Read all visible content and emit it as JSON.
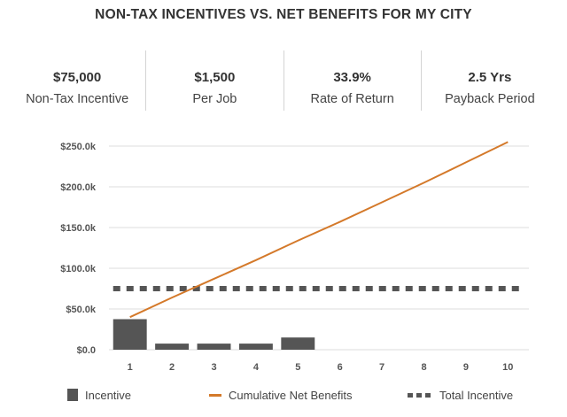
{
  "title": "NON-TAX INCENTIVES VS. NET BENEFITS FOR MY CITY",
  "stats": [
    {
      "value": "$75,000",
      "label": "Non-Tax Incentive"
    },
    {
      "value": "$1,500",
      "label": "Per Job"
    },
    {
      "value": "33.9%",
      "label": "Rate of Return"
    },
    {
      "value": "2.5 Yrs",
      "label": "Payback Period"
    }
  ],
  "legend": {
    "incentive": "Incentive",
    "net_benefits": "Cumulative Net Benefits",
    "total_incentive": "Total Incentive"
  },
  "colors": {
    "bars": "#555555",
    "line": "#d4792a",
    "dashed": "#555555",
    "grid": "#dddddd"
  },
  "chart_data": {
    "type": "bar",
    "title": "",
    "xlabel": "",
    "ylabel": "",
    "categories": [
      "1",
      "2",
      "3",
      "4",
      "5",
      "6",
      "7",
      "8",
      "9",
      "10"
    ],
    "ylim": [
      0,
      250000
    ],
    "y_ticks": [
      0,
      50000,
      100000,
      150000,
      200000,
      250000
    ],
    "y_tick_labels": [
      "$0.0",
      "$50.0k",
      "$100.0k",
      "$150.0k",
      "$200.0k",
      "$250.0k"
    ],
    "grid": true,
    "legend_position": "bottom",
    "series": [
      {
        "name": "Incentive",
        "type": "bar",
        "values": [
          37500,
          7500,
          7500,
          7500,
          15000,
          0,
          0,
          0,
          0,
          0
        ]
      },
      {
        "name": "Cumulative Net Benefits",
        "type": "line",
        "values": [
          40000,
          64000,
          87000,
          110000,
          134000,
          157000,
          181000,
          205000,
          230000,
          255000
        ]
      },
      {
        "name": "Total Incentive",
        "type": "dashed-line",
        "values": [
          75000,
          75000,
          75000,
          75000,
          75000,
          75000,
          75000,
          75000,
          75000,
          75000
        ]
      }
    ]
  }
}
